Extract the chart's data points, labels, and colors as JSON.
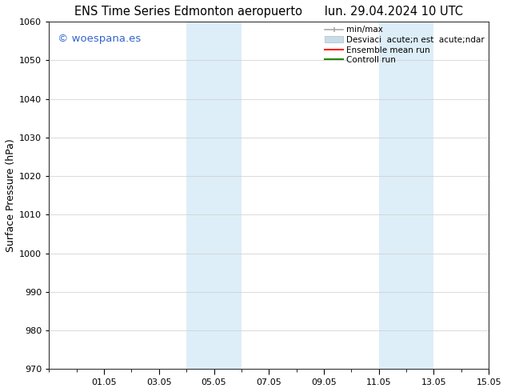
{
  "title_left": "ENS Time Series Edmonton aeropuerto",
  "title_right": "lun. 29.04.2024 10 UTC",
  "ylabel": "Surface Pressure (hPa)",
  "ylim": [
    970,
    1060
  ],
  "yticks": [
    970,
    980,
    990,
    1000,
    1010,
    1020,
    1030,
    1040,
    1050,
    1060
  ],
  "xtick_labels": [
    "01.05",
    "03.05",
    "05.05",
    "07.05",
    "09.05",
    "11.05",
    "13.05",
    "15.05"
  ],
  "xtick_positions": [
    2,
    4,
    6,
    8,
    10,
    12,
    14,
    16
  ],
  "xlim": [
    0,
    16
  ],
  "shaded_bands": [
    {
      "x_start": 5,
      "x_end": 7,
      "color": "#ddeef8"
    },
    {
      "x_start": 12,
      "x_end": 14,
      "color": "#ddeef8"
    }
  ],
  "watermark_text": "© woespana.es",
  "watermark_color": "#3366cc",
  "background_color": "#ffffff",
  "grid_color": "#cccccc",
  "legend_labels": [
    "min/max",
    "Desviaci  acute;n est  acute;ndar",
    "Ensemble mean run",
    "Controll run"
  ],
  "legend_colors": [
    "#aaaaaa",
    "#c8dce8",
    "#ff2200",
    "#228800"
  ]
}
